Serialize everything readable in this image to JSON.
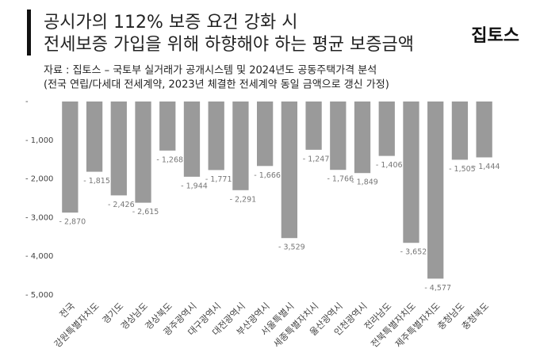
{
  "chart_data": {
    "type": "bar",
    "title_lines": [
      "공시가의 112% 보증 요건 강화 시",
      "전세보증 가입을 위해 하향해야 하는 평균 보증금액"
    ],
    "logo": "집토스",
    "source_lines": [
      "자료 : 집토스 – 국토부 실거래가 공개시스템 및 2024년도 공동주택가격 분석",
      "(전국 연립/다세대 전세계약, 2023년 체결한 전세계약 동일 금액으로 갱신 가정)"
    ],
    "categories": [
      "전국",
      "강원특별자치도",
      "경기도",
      "경상남도",
      "경상북도",
      "광주광역시",
      "대구광역시",
      "대전광역시",
      "부산광역시",
      "서울특별시",
      "세종특별자치시",
      "울산광역시",
      "인천광역시",
      "전라남도",
      "전북특별자치도",
      "제주특별자치도",
      "충청남도",
      "충청북도"
    ],
    "values": [
      -2870,
      -1815,
      -2426,
      -2615,
      -1268,
      -1944,
      -1771,
      -2291,
      -1666,
      -3529,
      -1247,
      -1766,
      -1849,
      -1406,
      -3652,
      -4577,
      -1505,
      -1444
    ],
    "value_labels": [
      "- 2,870",
      "- 1,815",
      "- 2,426",
      "- 2,615",
      "- 1,268",
      "- 1,944",
      "- 1,771",
      "- 2,291",
      "- 1,666",
      "- 3,529",
      "- 1,247",
      "- 1,766",
      "- 1,849",
      "- 1,406",
      "- 3,652",
      "- 4,577",
      "- 1,505",
      "- 1,444"
    ],
    "color": "#9a9a9a",
    "ylim": [
      -5000,
      0
    ],
    "yticks": [
      {
        "value": 0,
        "label": "-"
      },
      {
        "value": -1000,
        "label": "- 1,000"
      },
      {
        "value": -2000,
        "label": "- 2,000"
      },
      {
        "value": -3000,
        "label": "- 3,000"
      },
      {
        "value": -4000,
        "label": "- 4,000"
      },
      {
        "value": -5000,
        "label": "- 5,000"
      }
    ],
    "grid": false
  }
}
